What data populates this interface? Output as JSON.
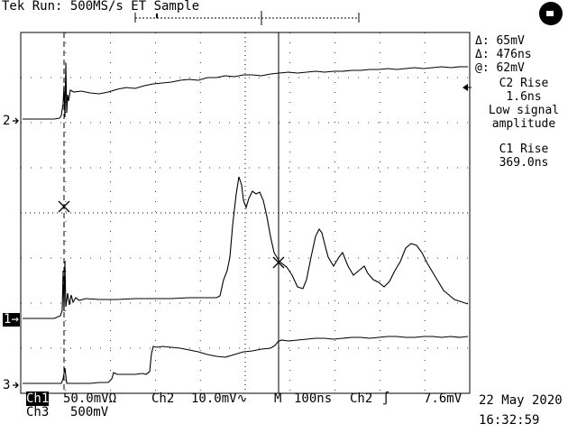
{
  "header": {
    "status": "Tek Run: 500MS/s ET Sample"
  },
  "side_panel": {
    "cursor_delta_v": "Δ: 65mV",
    "cursor_delta_t": "Δ: 476ns",
    "cursor_at": "@: 62mV",
    "meas1_title": "C2 Rise",
    "meas1_value": "1.6ns",
    "meas1_note1": "Low signal",
    "meas1_note2": "amplitude",
    "meas2_title": "C1 Rise",
    "meas2_value": "369.0ns"
  },
  "channel_markers": {
    "ch2": "2",
    "ch1": "1",
    "ch3": "3"
  },
  "bottom": {
    "ch1_label": "Ch1",
    "ch1_scale": "50.0mVΩ",
    "ch2_label": "Ch2",
    "ch2_scale": "10.0mV∿",
    "time_label": "M",
    "time_scale": "100ns",
    "trig_source": "Ch2",
    "trig_level": "7.6mV",
    "ch3_label": "Ch3",
    "ch3_scale": "500mV",
    "date": "22 May 2020",
    "time": "16:32:59"
  },
  "colors": {
    "trace": "#000000",
    "background": "#ffffff"
  },
  "icons": {
    "status_indicator": "filled-circle-icon"
  }
}
